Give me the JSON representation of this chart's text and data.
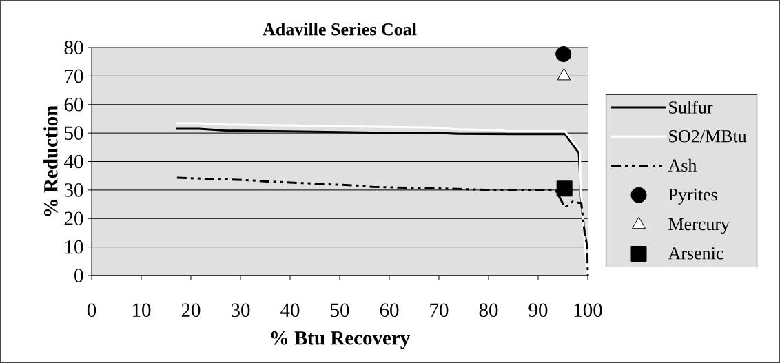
{
  "chart_data": {
    "type": "line",
    "title": "Adaville Series Coal",
    "xlabel": "% Btu Recovery",
    "ylabel": "% Reduction",
    "xlim": [
      0,
      100
    ],
    "xticks": [
      0,
      10,
      20,
      30,
      40,
      50,
      60,
      70,
      80,
      90,
      100
    ],
    "ylim": [
      0,
      80
    ],
    "yticks": [
      0,
      10,
      20,
      30,
      40,
      50,
      60,
      70,
      80
    ],
    "grid": "y",
    "legend": "right",
    "series": [
      {
        "name": "Sulfur",
        "color": "#000000",
        "line_style": "solid",
        "marker": "none",
        "x": [
          17,
          21.6,
          26.9,
          58.9,
          69.1,
          73.7,
          85,
          95.4,
          98.2,
          98.7,
          99.35,
          99.9
        ],
        "values": [
          51.5,
          51.5,
          50.9,
          50.1,
          50.1,
          49.7,
          49.6,
          49.6,
          43,
          25.5,
          15,
          10
        ]
      },
      {
        "name": "SO2/MBtu",
        "color": "#ffffff",
        "line_style": "solid",
        "marker": "none",
        "x": [
          17,
          21.6,
          27,
          69,
          73.7,
          82.7,
          83.5,
          95.4,
          98.4,
          98.6,
          99.5,
          100
        ],
        "values": [
          53.4,
          53.4,
          53,
          51.9,
          51.3,
          51,
          50.6,
          50.6,
          43.8,
          30,
          9,
          0
        ]
      },
      {
        "name": "Ash",
        "color": "#000000",
        "line_style": "dashed",
        "marker": "none",
        "x": [
          17.2,
          32.3,
          35.4,
          53.3,
          56.6,
          71.2,
          79.4,
          93.5,
          95.4,
          97,
          98.2,
          98.7,
          99.35,
          99.9,
          100
        ],
        "values": [
          34.3,
          33.4,
          33,
          31.6,
          31.1,
          30.5,
          30.1,
          30.1,
          23.9,
          26,
          25.5,
          25.5,
          15,
          10,
          0
        ]
      },
      {
        "name": "Pyrites",
        "type": "scatter",
        "color": "#000000",
        "marker": "circle",
        "x": [
          95.1
        ],
        "values": [
          77.7
        ]
      },
      {
        "name": "Mercury",
        "type": "scatter",
        "color": "#ffffff",
        "marker": "triangle",
        "x": [
          95.2
        ],
        "values": [
          70
        ]
      },
      {
        "name": "Arsenic",
        "type": "scatter",
        "color": "#000000",
        "marker": "square",
        "x": [
          95.3
        ],
        "values": [
          30.5
        ]
      }
    ]
  }
}
